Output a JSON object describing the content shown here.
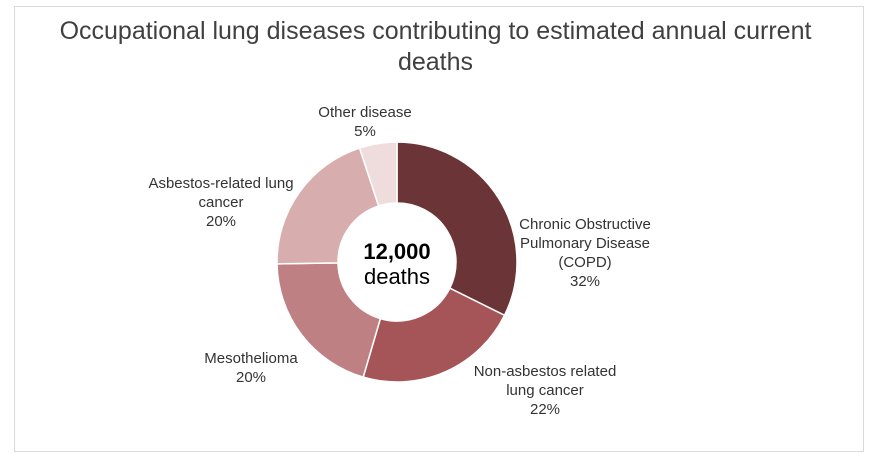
{
  "chart_data": {
    "type": "pie",
    "variant": "donut",
    "title": "Occupational lung diseases contributing to estimated annual current deaths",
    "center_value": "12,000",
    "center_unit": "deaths",
    "slices": [
      {
        "label_lines": [
          "Chronic Obstructive",
          "Pulmonary Disease",
          "(COPD)"
        ],
        "percent_label": "32%",
        "value": 32,
        "color": "#6b3537"
      },
      {
        "label_lines": [
          "Non-asbestos related",
          "lung cancer"
        ],
        "percent_label": "22%",
        "value": 22,
        "color": "#a55557"
      },
      {
        "label_lines": [
          "Mesothelioma"
        ],
        "percent_label": "20%",
        "value": 20,
        "color": "#be8082"
      },
      {
        "label_lines": [
          "Asbestos-related lung",
          "cancer"
        ],
        "percent_label": "20%",
        "value": 20,
        "color": "#d8adae"
      },
      {
        "label_lines": [
          "Other disease"
        ],
        "percent_label": "5%",
        "value": 5,
        "color": "#efdcdc"
      }
    ]
  }
}
